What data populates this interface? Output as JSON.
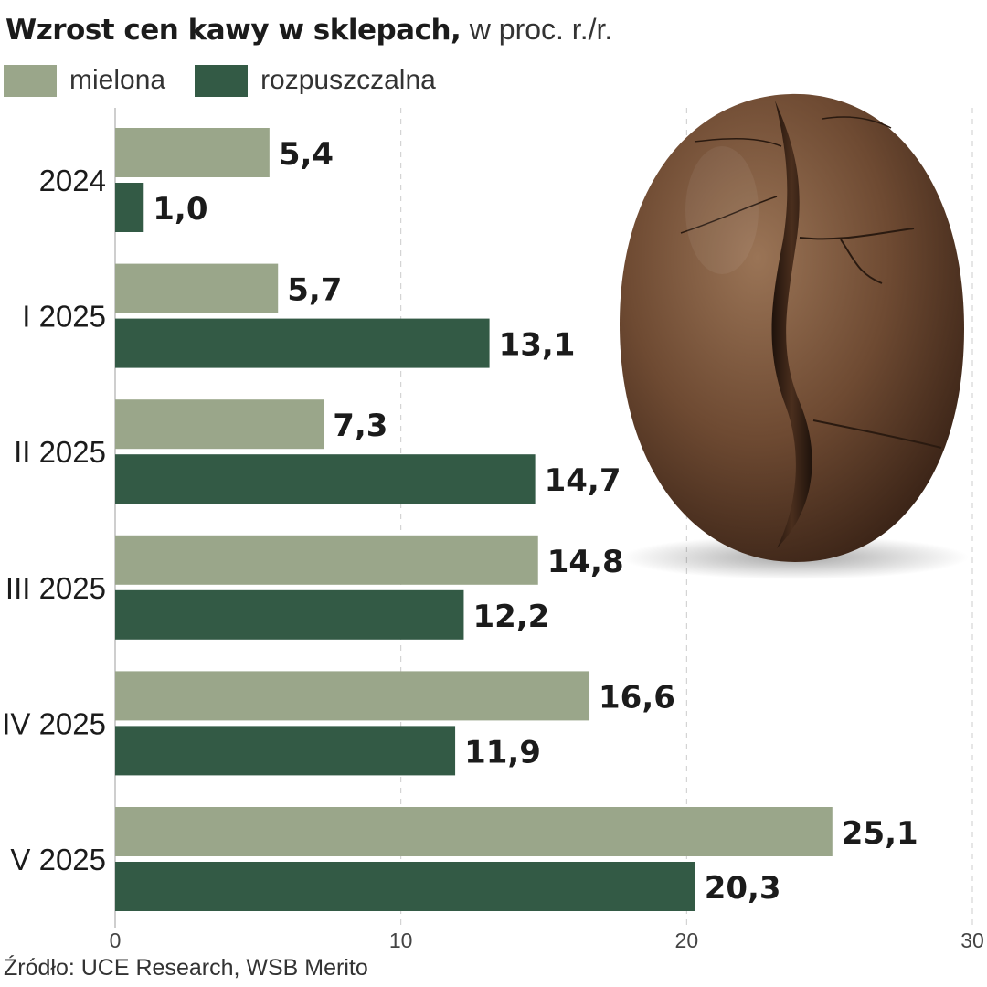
{
  "title": {
    "main": "Wzrost cen kawy w sklepach,",
    "sub": "w proc. r./r."
  },
  "source": "Źródło: UCE Research, WSB Merito",
  "colors": {
    "mielona": "#9aa68a",
    "rozpuszczalna": "#335a45",
    "grid": "#cccccc",
    "axis": "#bdbdbd",
    "bean_dark": "#3b2417",
    "bean_mid": "#6e4a32",
    "bean_light": "#9a7456"
  },
  "legend": [
    {
      "label": "mielona",
      "series": "mielona"
    },
    {
      "label": "rozpuszczalna",
      "series": "rozpuszczalna"
    }
  ],
  "chart_data": {
    "type": "bar",
    "orientation": "horizontal",
    "title": "Wzrost cen kawy w sklepach, w proc. r./r.",
    "categories": [
      "2024",
      "I 2025",
      "II 2025",
      "III 2025",
      "IV 2025",
      "V 2025"
    ],
    "series": [
      {
        "name": "mielona",
        "values": [
          5.4,
          5.7,
          7.3,
          14.8,
          16.6,
          25.1
        ],
        "labels": [
          "5,4",
          "5,7",
          "7,3",
          "14,8",
          "16,6",
          "25,1"
        ]
      },
      {
        "name": "rozpuszczalna",
        "values": [
          1.0,
          13.1,
          14.7,
          12.2,
          11.9,
          20.3
        ],
        "labels": [
          "1,0",
          "13,1",
          "14,7",
          "12,2",
          "11,9",
          "20,3"
        ]
      }
    ],
    "xlim": [
      0,
      30
    ],
    "xticks": [
      0,
      10,
      20,
      30
    ],
    "xtick_labels": [
      "0",
      "10",
      "20",
      "30"
    ],
    "grid": true,
    "legend_position": "top-left"
  }
}
